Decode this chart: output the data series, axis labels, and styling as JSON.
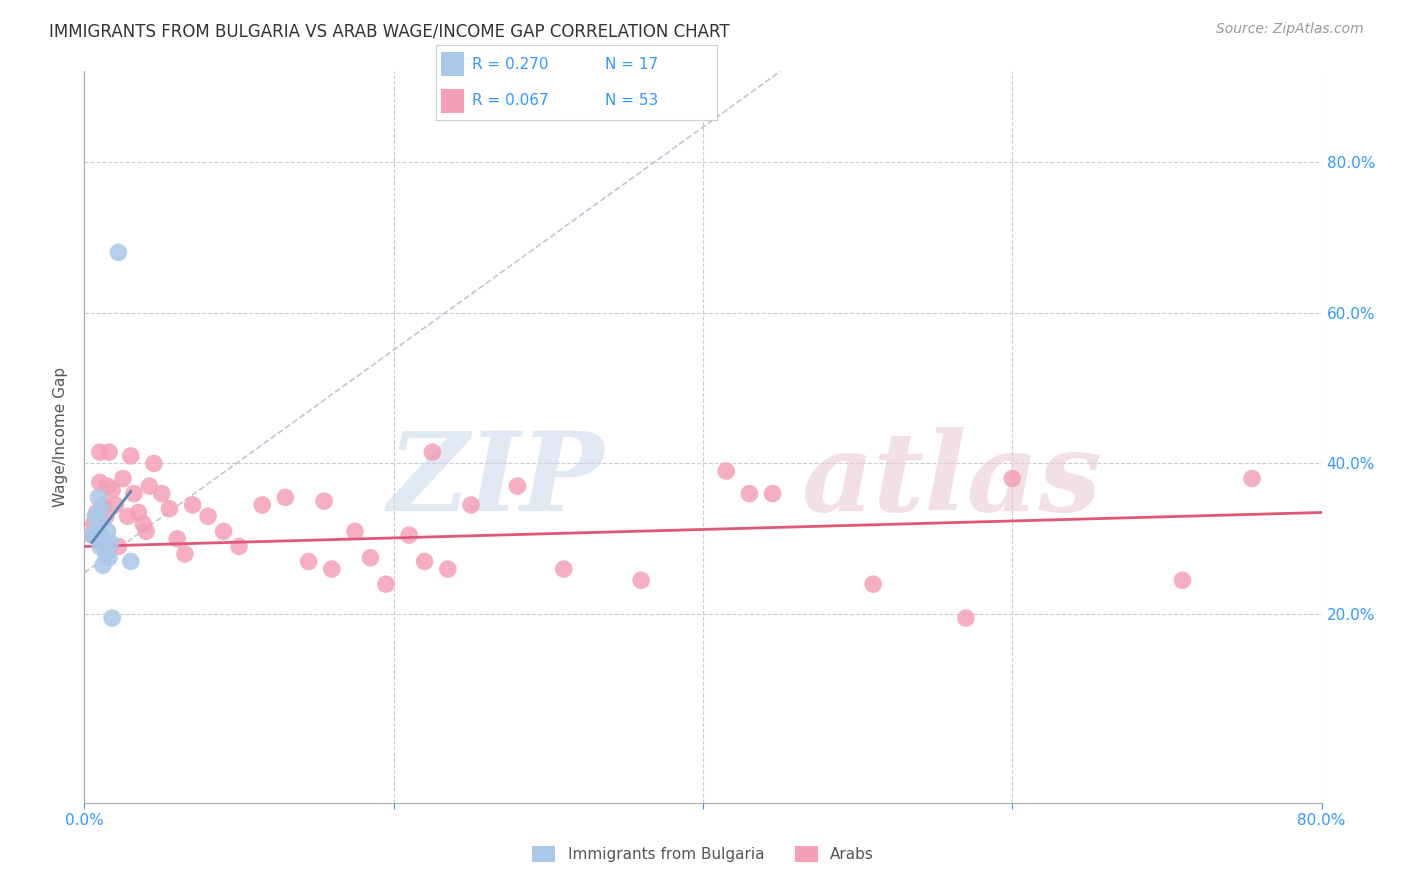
{
  "title": "IMMIGRANTS FROM BULGARIA VS ARAB WAGE/INCOME GAP CORRELATION CHART",
  "source": "Source: ZipAtlas.com",
  "ylabel": "Wage/Income Gap",
  "xlim": [
    0.0,
    0.8
  ],
  "ylim": [
    -0.05,
    0.92
  ],
  "xtick_vals": [
    0.0,
    0.2,
    0.4,
    0.6,
    0.8
  ],
  "xtick_labels_show": [
    "0.0%",
    "",
    "",
    "",
    "80.0%"
  ],
  "ytick_vals": [
    0.2,
    0.4,
    0.6,
    0.8
  ],
  "ytick_labels": [
    "20.0%",
    "40.0%",
    "60.0%",
    "80.0%"
  ],
  "legend_r_bulgaria": "R = 0.270",
  "legend_n_bulgaria": "N = 17",
  "legend_r_arab": "R = 0.067",
  "legend_n_arab": "N = 53",
  "bulgaria_color": "#aac8e8",
  "arab_color": "#f4a0b8",
  "bulgaria_line_color": "#5588bb",
  "arab_line_color": "#e05878",
  "watermark_zip": "ZIP",
  "watermark_atlas": "atlas",
  "bg_color": "#ffffff",
  "grid_color": "#cccccc",
  "title_color": "#333333",
  "axis_label_color": "#555555",
  "tick_color": "#3399ff",
  "bulgaria_scatter_x": [
    0.005,
    0.007,
    0.008,
    0.009,
    0.01,
    0.01,
    0.011,
    0.012,
    0.012,
    0.013,
    0.014,
    0.015,
    0.016,
    0.017,
    0.018,
    0.022,
    0.03
  ],
  "bulgaria_scatter_y": [
    0.305,
    0.33,
    0.31,
    0.355,
    0.32,
    0.29,
    0.34,
    0.3,
    0.265,
    0.295,
    0.28,
    0.31,
    0.275,
    0.295,
    0.195,
    0.68,
    0.27
  ],
  "arab_scatter_x": [
    0.005,
    0.006,
    0.008,
    0.01,
    0.01,
    0.012,
    0.014,
    0.015,
    0.016,
    0.018,
    0.02,
    0.022,
    0.025,
    0.028,
    0.03,
    0.032,
    0.035,
    0.038,
    0.04,
    0.042,
    0.045,
    0.05,
    0.055,
    0.06,
    0.065,
    0.07,
    0.08,
    0.09,
    0.1,
    0.115,
    0.13,
    0.145,
    0.155,
    0.16,
    0.175,
    0.185,
    0.195,
    0.21,
    0.22,
    0.225,
    0.235,
    0.25,
    0.28,
    0.31,
    0.36,
    0.415,
    0.43,
    0.445,
    0.51,
    0.57,
    0.6,
    0.71,
    0.755
  ],
  "arab_scatter_y": [
    0.305,
    0.32,
    0.335,
    0.375,
    0.415,
    0.345,
    0.33,
    0.37,
    0.415,
    0.365,
    0.345,
    0.29,
    0.38,
    0.33,
    0.41,
    0.36,
    0.335,
    0.32,
    0.31,
    0.37,
    0.4,
    0.36,
    0.34,
    0.3,
    0.28,
    0.345,
    0.33,
    0.31,
    0.29,
    0.345,
    0.355,
    0.27,
    0.35,
    0.26,
    0.31,
    0.275,
    0.24,
    0.305,
    0.27,
    0.415,
    0.26,
    0.345,
    0.37,
    0.26,
    0.245,
    0.39,
    0.36,
    0.36,
    0.24,
    0.195,
    0.38,
    0.245,
    0.38
  ],
  "bulgaria_trend_x": [
    0.0,
    0.45
  ],
  "bulgaria_trend_y": [
    0.255,
    0.92
  ],
  "arab_trend_x": [
    0.0,
    0.8
  ],
  "arab_trend_y": [
    0.29,
    0.335
  ]
}
